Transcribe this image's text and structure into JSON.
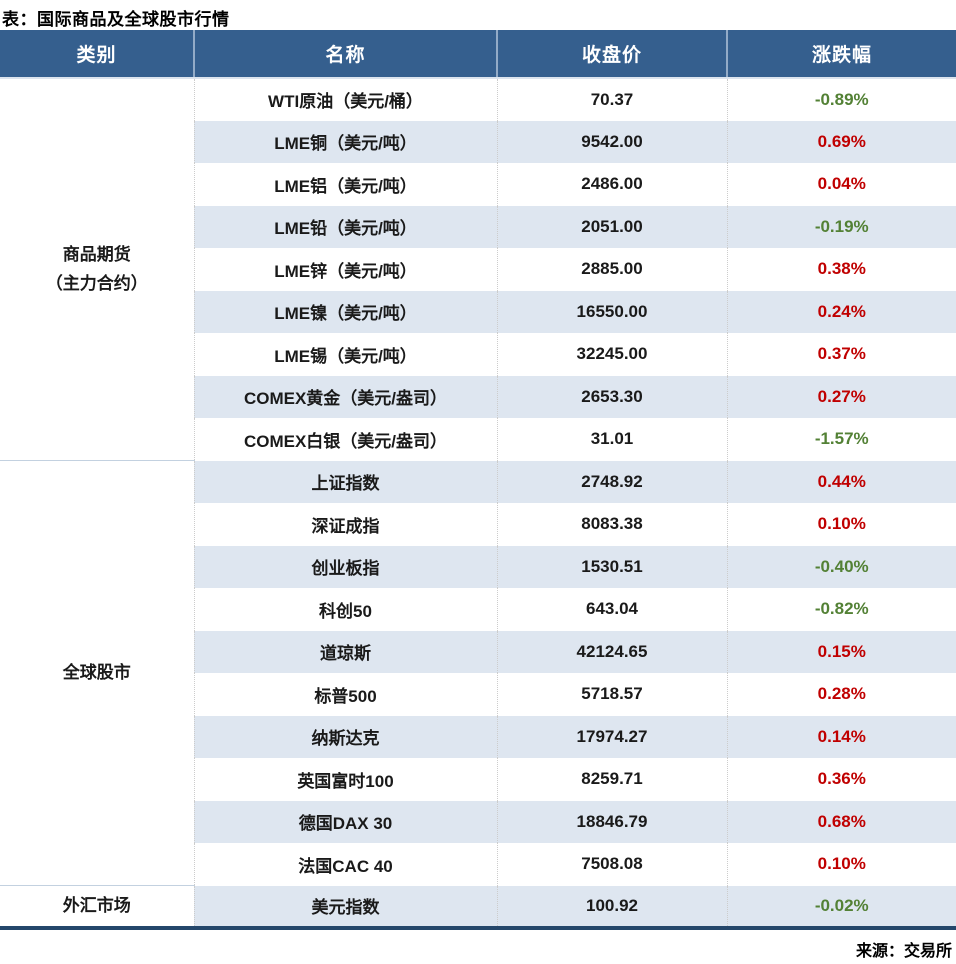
{
  "title": "表：国际商品及全球股市行情",
  "source": "来源：交易所",
  "colors": {
    "header_bg": "#355f8e",
    "stripe_bg": "#dee6f0",
    "up_red": "#c00000",
    "down_green": "#538135",
    "bottom_border": "#24476b"
  },
  "table": {
    "headers": [
      "类别",
      "名称",
      "收盘价",
      "涨跌幅"
    ],
    "sections": [
      {
        "category": [
          "商品期货",
          "（主力合约）"
        ],
        "rows": [
          {
            "name": "WTI原油（美元/桶）",
            "close": "70.37",
            "change": "-0.89%"
          },
          {
            "name": "LME铜（美元/吨）",
            "close": "9542.00",
            "change": "0.69%"
          },
          {
            "name": "LME铝（美元/吨）",
            "close": "2486.00",
            "change": "0.04%"
          },
          {
            "name": "LME铅（美元/吨）",
            "close": "2051.00",
            "change": "-0.19%"
          },
          {
            "name": "LME锌（美元/吨）",
            "close": "2885.00",
            "change": "0.38%"
          },
          {
            "name": "LME镍（美元/吨）",
            "close": "16550.00",
            "change": "0.24%"
          },
          {
            "name": "LME锡（美元/吨）",
            "close": "32245.00",
            "change": "0.37%"
          },
          {
            "name": "COMEX黄金（美元/盎司）",
            "close": "2653.30",
            "change": "0.27%"
          },
          {
            "name": "COMEX白银（美元/盎司）",
            "close": "31.01",
            "change": "-1.57%"
          }
        ]
      },
      {
        "category": [
          "全球股市"
        ],
        "rows": [
          {
            "name": "上证指数",
            "close": "2748.92",
            "change": "0.44%"
          },
          {
            "name": "深证成指",
            "close": "8083.38",
            "change": "0.10%"
          },
          {
            "name": "创业板指",
            "close": "1530.51",
            "change": "-0.40%"
          },
          {
            "name": "科创50",
            "close": "643.04",
            "change": "-0.82%"
          },
          {
            "name": "道琼斯",
            "close": "42124.65",
            "change": "0.15%"
          },
          {
            "name": "标普500",
            "close": "5718.57",
            "change": "0.28%"
          },
          {
            "name": "纳斯达克",
            "close": "17974.27",
            "change": "0.14%"
          },
          {
            "name": "英国富时100",
            "close": "8259.71",
            "change": "0.36%"
          },
          {
            "name": "德国DAX 30",
            "close": "18846.79",
            "change": "0.68%"
          },
          {
            "name": "法国CAC 40",
            "close": "7508.08",
            "change": "0.10%"
          }
        ]
      },
      {
        "category": [
          "外汇市场"
        ],
        "rows": [
          {
            "name": "美元指数",
            "close": "100.92",
            "change": "-0.02%"
          }
        ]
      }
    ]
  }
}
